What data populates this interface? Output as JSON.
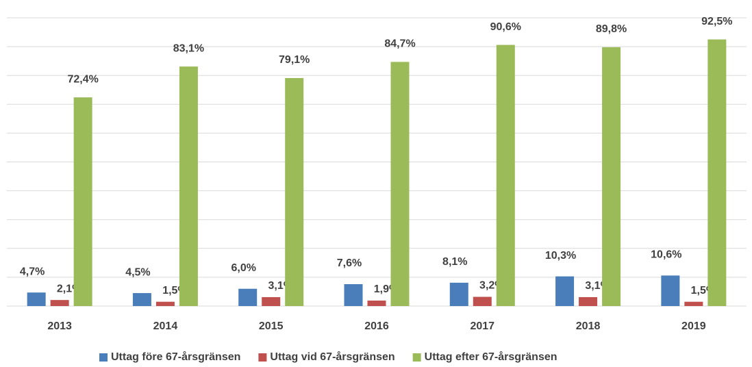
{
  "chart_data": {
    "type": "bar",
    "categories": [
      "2013",
      "2014",
      "2015",
      "2016",
      "2017",
      "2018",
      "2019"
    ],
    "series": [
      {
        "name": "Uttag före 67-årsgränsen",
        "color": "#4a7ebb",
        "values": [
          4.7,
          4.5,
          6.0,
          7.6,
          8.1,
          10.3,
          10.6
        ],
        "value_labels": [
          "4,7%",
          "4,5%",
          "6,0%",
          "7,6%",
          "8,1%",
          "10,3%",
          "10,6%"
        ]
      },
      {
        "name": "Uttag vid 67-årsgränsen",
        "color": "#c0504d",
        "values": [
          2.1,
          1.5,
          3.1,
          1.9,
          3.2,
          3.1,
          1.5
        ],
        "value_labels": [
          "2,1%",
          "1,5%",
          "3,1%",
          "1,9%",
          "3,2%",
          "3,1%",
          "1,5%"
        ]
      },
      {
        "name": "Uttag efter 67-årsgränsen",
        "color": "#9bbb59",
        "values": [
          72.4,
          83.1,
          79.1,
          84.7,
          90.6,
          89.8,
          92.5
        ],
        "value_labels": [
          "72,4%",
          "83,1%",
          "79,1%",
          "84,7%",
          "90,6%",
          "89,8%",
          "92,5%"
        ]
      }
    ],
    "ylim": [
      0,
      100
    ],
    "yticks": [
      0,
      10,
      20,
      30,
      40,
      50,
      60,
      70,
      80,
      90,
      100
    ],
    "grid": true
  }
}
